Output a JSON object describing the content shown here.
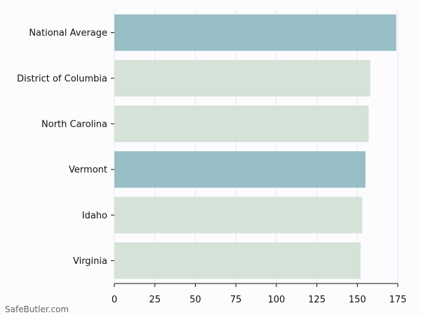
{
  "chart_data": {
    "type": "bar",
    "orientation": "horizontal",
    "categories": [
      "National Average",
      "District of Columbia",
      "North Carolina",
      "Vermont",
      "Idaho",
      "Virginia"
    ],
    "values": [
      174,
      158,
      157,
      155,
      153,
      152
    ],
    "bar_colors": [
      "#98bec6",
      "#d5e2d7",
      "#d5e2d7",
      "#98bec6",
      "#d5e2d7",
      "#d5e2d7"
    ],
    "xticks": [
      "0",
      "25",
      "50",
      "75",
      "100",
      "125",
      "150",
      "175"
    ],
    "xtick_values": [
      0,
      25,
      50,
      75,
      100,
      125,
      150,
      175
    ],
    "xlim": [
      0,
      175
    ],
    "grid": "vertical",
    "grid_color": "#e6e6ee",
    "title": "",
    "xlabel": "",
    "ylabel": ""
  },
  "watermark": "SafeButler.com"
}
